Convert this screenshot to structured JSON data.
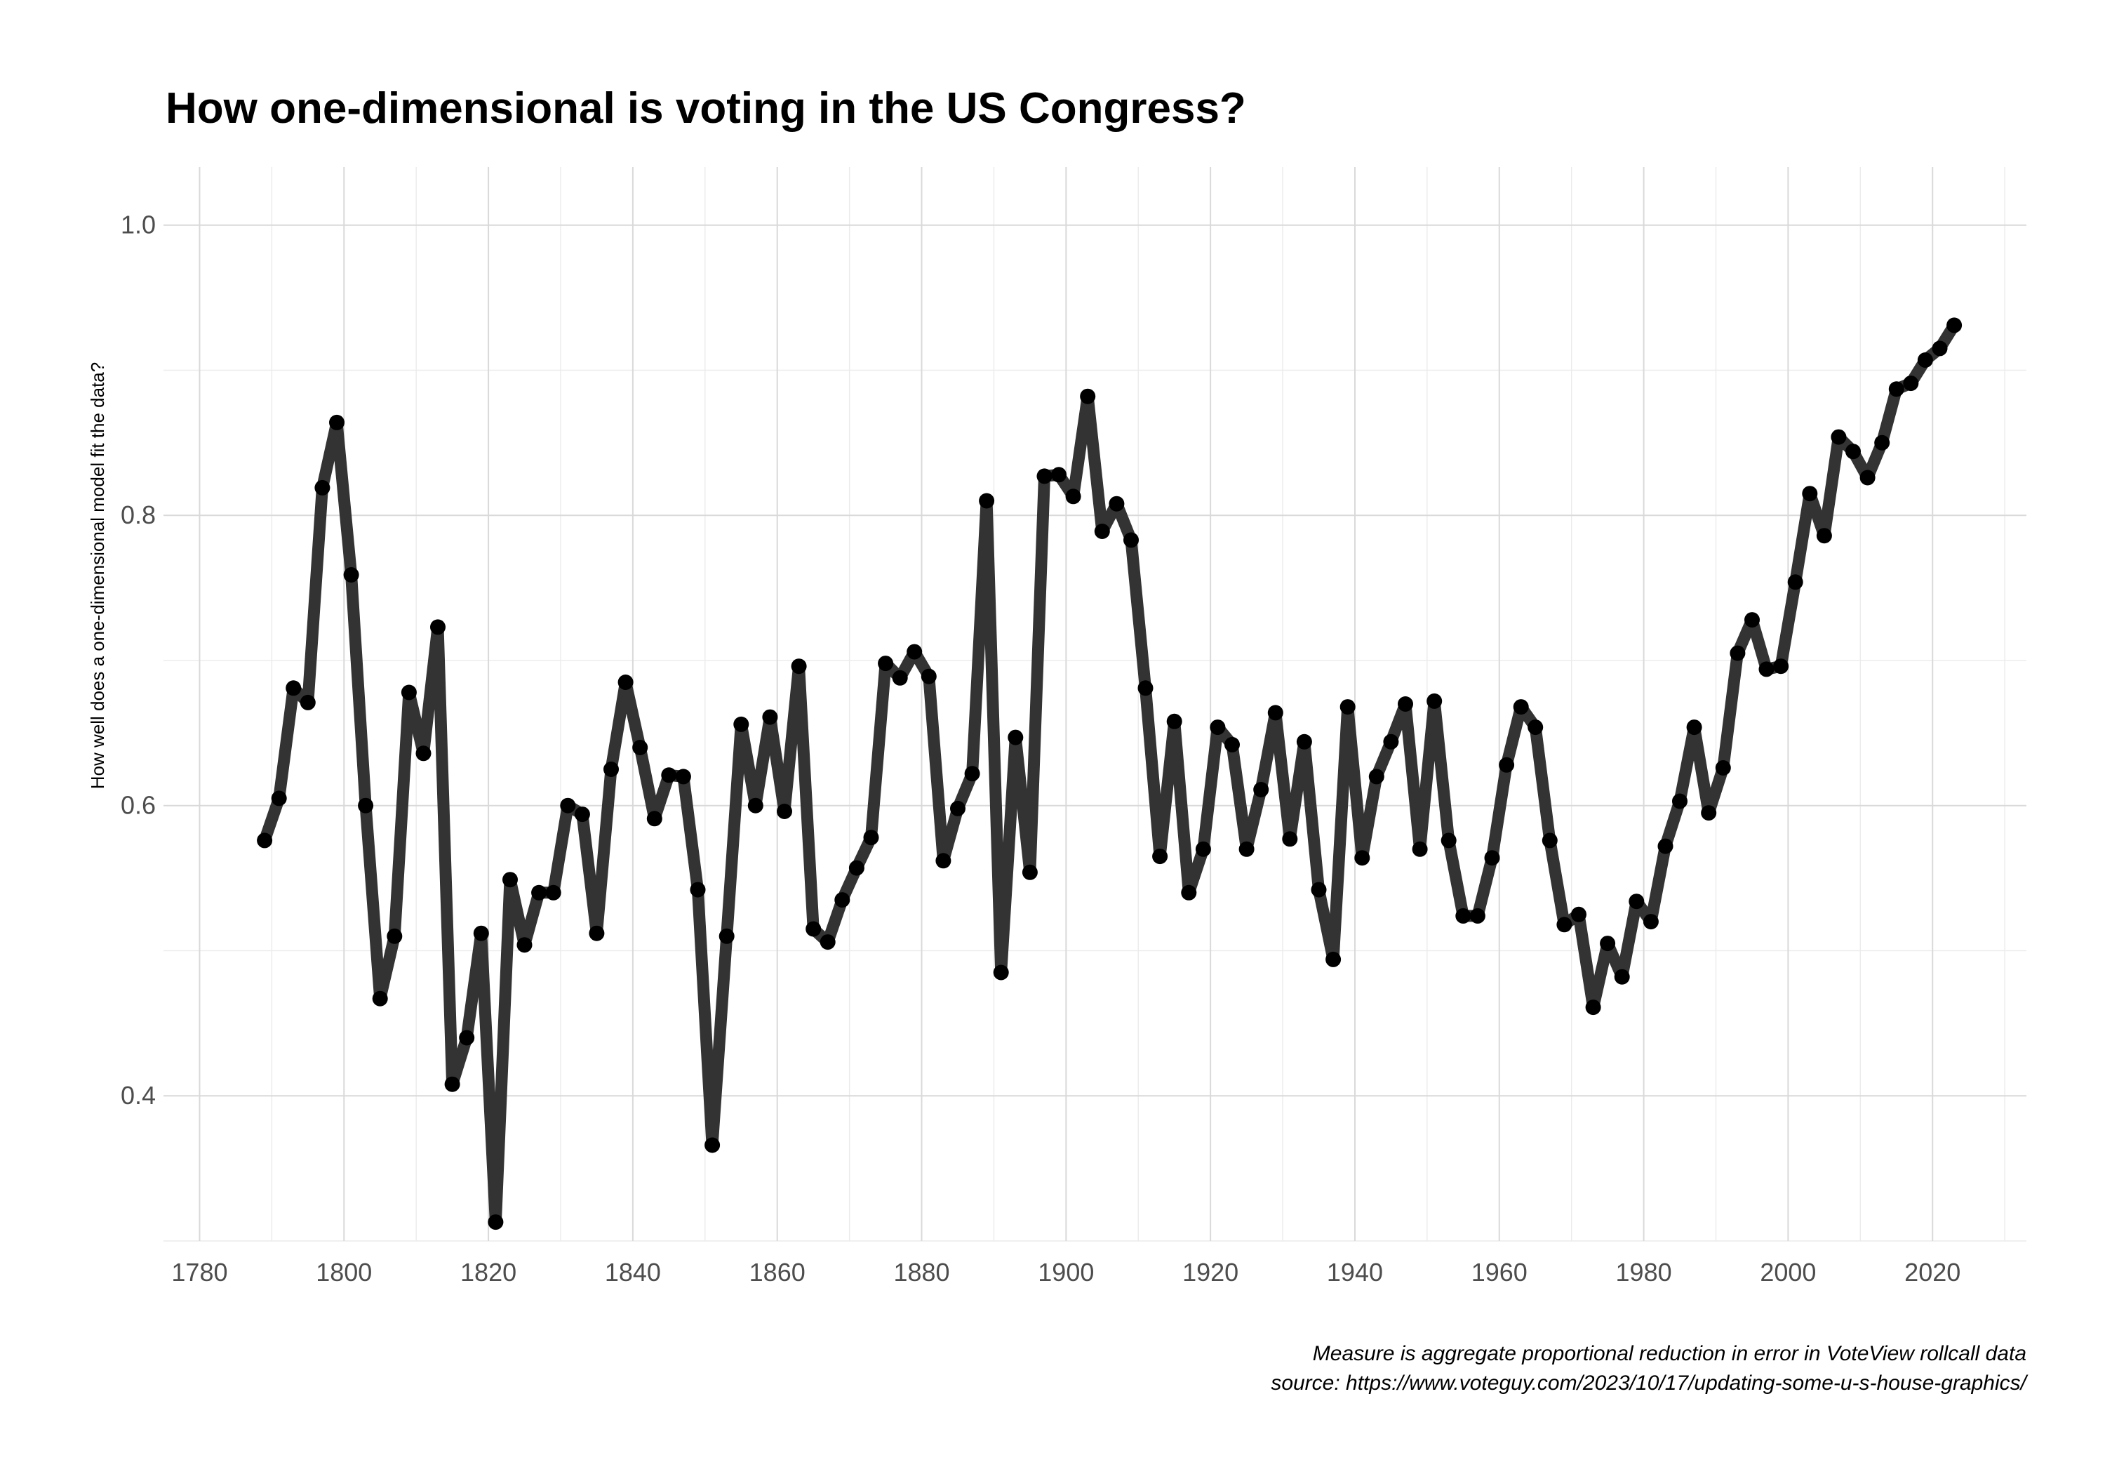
{
  "chart_data": {
    "type": "line",
    "title": "How one-dimensional is voting in the US Congress?",
    "xlabel": "",
    "ylabel": "How well does a one-dimensional model fit the data?",
    "caption": [
      "Measure is aggregate proportional reduction in error in VoteView rollcall data",
      "source: https://www.voteguy.com/2023/10/17/updating-some-u-s-house-graphics/"
    ],
    "xlim": [
      1775,
      2033
    ],
    "ylim": [
      0.3,
      1.04
    ],
    "x_ticks": [
      1780,
      1800,
      1820,
      1840,
      1860,
      1880,
      1900,
      1920,
      1940,
      1960,
      1980,
      2000,
      2020
    ],
    "x_tick_labels": [
      "1780",
      "1800",
      "1820",
      "1840",
      "1860",
      "1880",
      "1900",
      "1920",
      "1940",
      "1960",
      "1980",
      "2000",
      "2020"
    ],
    "y_ticks": [
      0.4,
      0.6,
      0.8,
      1.0
    ],
    "y_tick_labels": [
      "0.4",
      "0.6",
      "0.8",
      "1.0"
    ],
    "grid": true,
    "legend": "none",
    "line_color": "#333333",
    "point_color": "#000000",
    "series": [
      {
        "x": [
          1789,
          1791,
          1793,
          1795,
          1797,
          1799,
          1801,
          1803,
          1805,
          1807,
          1809,
          1811,
          1813,
          1815,
          1817,
          1819,
          1821,
          1823,
          1825,
          1827,
          1829,
          1831,
          1833,
          1835,
          1837,
          1839,
          1841,
          1843,
          1845,
          1847,
          1849,
          1851,
          1853,
          1855,
          1857,
          1859,
          1861,
          1863,
          1865,
          1867,
          1869,
          1871,
          1873,
          1875,
          1877,
          1879,
          1881,
          1883,
          1885,
          1887,
          1889,
          1891,
          1893,
          1895,
          1897,
          1899,
          1901,
          1903,
          1905,
          1907,
          1909,
          1911,
          1913,
          1915,
          1917,
          1919,
          1921,
          1923,
          1925,
          1927,
          1929,
          1931,
          1933,
          1935,
          1937,
          1939,
          1941,
          1943,
          1945,
          1947,
          1949,
          1951,
          1953,
          1955,
          1957,
          1959,
          1961,
          1963,
          1965,
          1967,
          1969,
          1971,
          1973,
          1975,
          1977,
          1979,
          1981,
          1983,
          1985,
          1987,
          1989,
          1991,
          1993,
          1995,
          1997,
          1999,
          2001,
          2003,
          2005,
          2007,
          2009,
          2011,
          2013,
          2015,
          2017,
          2019,
          2021,
          2023
        ],
        "values": [
          0.576,
          0.605,
          0.681,
          0.671,
          0.819,
          0.864,
          0.759,
          0.6,
          0.467,
          0.51,
          0.678,
          0.636,
          0.723,
          0.408,
          0.44,
          0.512,
          0.313,
          0.549,
          0.504,
          0.54,
          0.54,
          0.6,
          0.594,
          0.512,
          0.625,
          0.685,
          0.64,
          0.591,
          0.621,
          0.62,
          0.542,
          0.366,
          0.51,
          0.656,
          0.6,
          0.661,
          0.596,
          0.696,
          0.515,
          0.506,
          0.535,
          0.557,
          0.578,
          0.698,
          0.688,
          0.706,
          0.689,
          0.562,
          0.598,
          0.622,
          0.81,
          0.485,
          0.647,
          0.554,
          0.827,
          0.828,
          0.813,
          0.882,
          0.789,
          0.808,
          0.783,
          0.681,
          0.565,
          0.658,
          0.54,
          0.57,
          0.654,
          0.642,
          0.57,
          0.611,
          0.664,
          0.577,
          0.644,
          0.542,
          0.494,
          0.668,
          0.564,
          0.62,
          0.644,
          0.67,
          0.57,
          0.672,
          0.576,
          0.524,
          0.524,
          0.564,
          0.628,
          0.668,
          0.654,
          0.576,
          0.518,
          0.525,
          0.461,
          0.505,
          0.482,
          0.534,
          0.52,
          0.572,
          0.603,
          0.654,
          0.595,
          0.626,
          0.705,
          0.728,
          0.694,
          0.696,
          0.754,
          0.815,
          0.786,
          0.854,
          0.844,
          0.826,
          0.85,
          0.887,
          0.891,
          0.907,
          0.915,
          0.931
        ]
      }
    ]
  }
}
